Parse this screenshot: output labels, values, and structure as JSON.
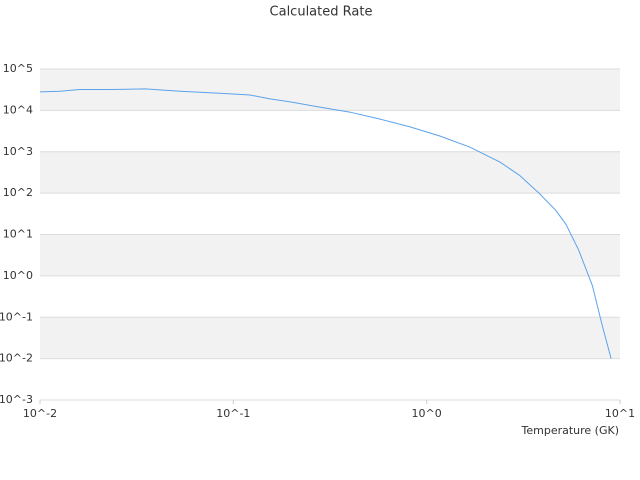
{
  "chart_data": {
    "type": "line",
    "title": "Calculated Rate",
    "x_label": "Temperature (GK)",
    "x": [
      0.01,
      0.0127,
      0.016,
      0.023,
      0.035,
      0.053,
      0.085,
      0.122,
      0.155,
      0.197,
      0.28,
      0.4,
      0.57,
      0.82,
      1.17,
      1.67,
      2.4,
      3.02,
      3.81,
      4.64,
      5.24,
      6.1,
      7.2,
      8.1,
      9.0
    ],
    "values": [
      28000,
      29000,
      32000,
      32000,
      33000,
      29000,
      26000,
      23500,
      19000,
      16000,
      12000,
      9100,
      6200,
      4000,
      2400,
      1300,
      560,
      270,
      100,
      39,
      18,
      4.3,
      0.58,
      0.062,
      0.01
    ],
    "color": "#5ba3ea",
    "xlog": true,
    "ylog": true,
    "xlim": [
      0.01,
      10
    ],
    "ylim": [
      0.001,
      100000
    ],
    "xticks": [
      {
        "value": 0.01,
        "label": "10^-2"
      },
      {
        "value": 0.1,
        "label": "10^-1"
      },
      {
        "value": 1,
        "label": "10^0"
      },
      {
        "value": 10,
        "label": "10^1"
      }
    ],
    "yticks": [
      {
        "value": 0.001,
        "label": "10^-3"
      },
      {
        "value": 0.01,
        "label": "10^-2"
      },
      {
        "value": 0.1,
        "label": "10^-1"
      },
      {
        "value": 1,
        "label": "10^0"
      },
      {
        "value": 10,
        "label": "10^1"
      },
      {
        "value": 100,
        "label": "10^2"
      },
      {
        "value": 1000,
        "label": "10^3"
      },
      {
        "value": 10000,
        "label": "10^4"
      },
      {
        "value": 100000,
        "label": "10^5"
      }
    ],
    "grid": true,
    "band_color": "#f2f2f2"
  }
}
